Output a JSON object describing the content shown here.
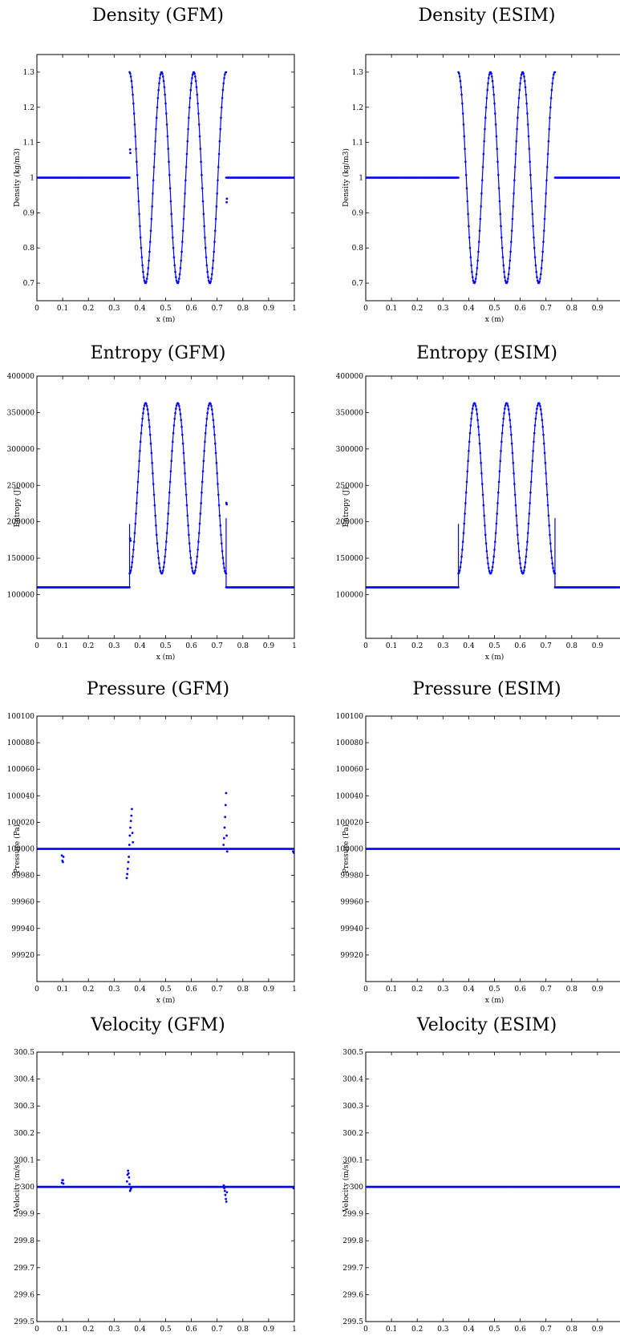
{
  "chart_data": [
    {
      "type": "line",
      "title": "Density (GFM)",
      "xlabel": "x (m)",
      "ylabel": "Density (kg/m3)",
      "xlim": [
        0,
        1
      ],
      "ylim": [
        0.65,
        1.35
      ],
      "x_ticks": [
        "0",
        "0.1",
        "0.2",
        "0.3",
        "0.4",
        "0.5",
        "0.6",
        "0.7",
        "0.8",
        "0.9",
        "1"
      ],
      "y_ticks": [
        {
          "v": 0.7,
          "label": "0.7"
        },
        {
          "v": 0.8,
          "label": "0.8"
        },
        {
          "v": 0.9,
          "label": "0.9"
        },
        {
          "v": 1.0,
          "label": "1"
        },
        {
          "v": 1.1,
          "label": "1.1"
        },
        {
          "v": 1.2,
          "label": "1.2"
        },
        {
          "v": 1.3,
          "label": "1.3"
        }
      ],
      "series": [
        {
          "color": "#0000ff",
          "segments": [
            {
              "kind": "const",
              "x0": 0,
              "x1": 0.36,
              "y": 1.0
            },
            {
              "kind": "sine",
              "x0": 0.36,
              "x1": 0.735,
              "base": 1.0,
              "amp": 0.3,
              "period": 0.125,
              "phase": 0.328
            },
            {
              "kind": "const",
              "x0": 0.735,
              "x1": 1,
              "y": 1.0
            }
          ],
          "spikes": [
            {
              "x": 0.362,
              "y": 1.08
            },
            {
              "x": 0.363,
              "y": 1.07
            },
            {
              "x": 0.737,
              "y": 0.93
            },
            {
              "x": 0.738,
              "y": 0.94
            }
          ]
        }
      ]
    },
    {
      "type": "line",
      "title": "Density (ESIM)",
      "xlabel": "x (m)",
      "ylabel": "Density (kg/m3)",
      "xlim": [
        0,
        1
      ],
      "ylim": [
        0.65,
        1.35
      ],
      "x_ticks": [
        "0",
        "0.1",
        "0.2",
        "0.3",
        "0.4",
        "0.5",
        "0.6",
        "0.7",
        "0.8",
        "0.9"
      ],
      "y_ticks": [
        {
          "v": 0.7,
          "label": "0.7"
        },
        {
          "v": 0.8,
          "label": "0.8"
        },
        {
          "v": 0.9,
          "label": "0.9"
        },
        {
          "v": 1.0,
          "label": "1"
        },
        {
          "v": 1.1,
          "label": "1.1"
        },
        {
          "v": 1.2,
          "label": "1.2"
        },
        {
          "v": 1.3,
          "label": "1.3"
        }
      ],
      "series": [
        {
          "color": "#0000ff",
          "segments": [
            {
              "kind": "const",
              "x0": 0,
              "x1": 0.36,
              "y": 1.0
            },
            {
              "kind": "sine",
              "x0": 0.36,
              "x1": 0.735,
              "base": 1.0,
              "amp": 0.3,
              "period": 0.125,
              "phase": 0.328
            },
            {
              "kind": "const",
              "x0": 0.735,
              "x1": 1,
              "y": 1.0
            }
          ],
          "spikes": []
        }
      ]
    },
    {
      "type": "line",
      "title": "Entropy (GFM)",
      "xlabel": "x (m)",
      "ylabel": "Entropy (J)",
      "xlim": [
        0,
        1
      ],
      "ylim": [
        40000,
        400000
      ],
      "x_ticks": [
        "0",
        "0.1",
        "0.2",
        "0.3",
        "0.4",
        "0.5",
        "0.6",
        "0.7",
        "0.8",
        "0.9",
        "1"
      ],
      "y_ticks": [
        {
          "v": 100000,
          "label": "100000"
        },
        {
          "v": 150000,
          "label": "150000"
        },
        {
          "v": 200000,
          "label": "200000"
        },
        {
          "v": 250000,
          "label": "250000"
        },
        {
          "v": 300000,
          "label": "300000"
        },
        {
          "v": 350000,
          "label": "350000"
        },
        {
          "v": 400000,
          "label": "400000"
        }
      ],
      "series": [
        {
          "color": "#0000ff",
          "segments": [
            {
              "kind": "const",
              "x0": 0,
              "x1": 0.36,
              "y": 110000
            },
            {
              "kind": "jump",
              "x": 0.36,
              "y0": 110000,
              "y1": 197000
            },
            {
              "kind": "sine",
              "x0": 0.36,
              "x1": 0.735,
              "base": 246000,
              "amp": 117000,
              "period": 0.125,
              "phase": 0.391
            },
            {
              "kind": "jump",
              "x": 0.735,
              "y0": 205000,
              "y1": 110000
            },
            {
              "kind": "const",
              "x0": 0.735,
              "x1": 1,
              "y": 110000
            }
          ],
          "spikes": [
            {
              "x": 0.362,
              "y": 177000
            },
            {
              "x": 0.364,
              "y": 174000
            },
            {
              "x": 0.736,
              "y": 226000
            },
            {
              "x": 0.737,
              "y": 224000
            }
          ]
        }
      ]
    },
    {
      "type": "line",
      "title": "Entropy (ESIM)",
      "xlabel": "x (m)",
      "ylabel": "Entropy (J)",
      "xlim": [
        0,
        1
      ],
      "ylim": [
        40000,
        400000
      ],
      "x_ticks": [
        "0",
        "0.1",
        "0.2",
        "0.3",
        "0.4",
        "0.5",
        "0.6",
        "0.7",
        "0.8",
        "0.9"
      ],
      "y_ticks": [
        {
          "v": 100000,
          "label": "100000"
        },
        {
          "v": 150000,
          "label": "150000"
        },
        {
          "v": 200000,
          "label": "200000"
        },
        {
          "v": 250000,
          "label": "250000"
        },
        {
          "v": 300000,
          "label": "300000"
        },
        {
          "v": 350000,
          "label": "350000"
        },
        {
          "v": 400000,
          "label": "400000"
        }
      ],
      "series": [
        {
          "color": "#0000ff",
          "segments": [
            {
              "kind": "const",
              "x0": 0,
              "x1": 0.36,
              "y": 110000
            },
            {
              "kind": "jump",
              "x": 0.36,
              "y0": 110000,
              "y1": 197000
            },
            {
              "kind": "sine",
              "x0": 0.36,
              "x1": 0.735,
              "base": 246000,
              "amp": 117000,
              "period": 0.125,
              "phase": 0.391
            },
            {
              "kind": "jump",
              "x": 0.735,
              "y0": 205000,
              "y1": 110000
            },
            {
              "kind": "const",
              "x0": 0.735,
              "x1": 1,
              "y": 110000
            }
          ],
          "spikes": []
        }
      ]
    },
    {
      "type": "line",
      "title": "Pressure (GFM)",
      "xlabel": "x (m)",
      "ylabel": "Pressure (Pa)",
      "xlim": [
        0,
        1
      ],
      "ylim": [
        99900,
        100100
      ],
      "x_ticks": [
        "0",
        "0.1",
        "0.2",
        "0.3",
        "0.4",
        "0.5",
        "0.6",
        "0.7",
        "0.8",
        "0.9",
        "1"
      ],
      "y_ticks": [
        {
          "v": 99920,
          "label": "99920"
        },
        {
          "v": 99940,
          "label": "99940"
        },
        {
          "v": 99960,
          "label": "99960"
        },
        {
          "v": 99980,
          "label": "99980"
        },
        {
          "v": 100000,
          "label": "100000"
        },
        {
          "v": 100020,
          "label": "100020"
        },
        {
          "v": 100040,
          "label": "100040"
        },
        {
          "v": 100060,
          "label": "100060"
        },
        {
          "v": 100080,
          "label": "100080"
        },
        {
          "v": 100100,
          "label": "100100"
        }
      ],
      "series": [
        {
          "color": "#0000ff",
          "segments": [
            {
              "kind": "const",
              "x0": 0,
              "x1": 1,
              "y": 100000
            }
          ],
          "spikes": [
            {
              "x": 0.097,
              "y": 99995
            },
            {
              "x": 0.099,
              "y": 99991
            },
            {
              "x": 0.101,
              "y": 99990
            },
            {
              "x": 0.103,
              "y": 99994
            },
            {
              "x": 0.349,
              "y": 99978
            },
            {
              "x": 0.351,
              "y": 99981
            },
            {
              "x": 0.353,
              "y": 99985
            },
            {
              "x": 0.355,
              "y": 99990
            },
            {
              "x": 0.357,
              "y": 99994
            },
            {
              "x": 0.359,
              "y": 100003
            },
            {
              "x": 0.361,
              "y": 100010
            },
            {
              "x": 0.363,
              "y": 100016
            },
            {
              "x": 0.365,
              "y": 100021
            },
            {
              "x": 0.367,
              "y": 100025
            },
            {
              "x": 0.369,
              "y": 100030
            },
            {
              "x": 0.371,
              "y": 100012
            },
            {
              "x": 0.373,
              "y": 100005
            },
            {
              "x": 0.725,
              "y": 100003
            },
            {
              "x": 0.727,
              "y": 100008
            },
            {
              "x": 0.729,
              "y": 100016
            },
            {
              "x": 0.731,
              "y": 100024
            },
            {
              "x": 0.733,
              "y": 100033
            },
            {
              "x": 0.735,
              "y": 100042
            },
            {
              "x": 0.737,
              "y": 100010
            },
            {
              "x": 0.739,
              "y": 99998
            },
            {
              "x": 0.995,
              "y": 99998
            },
            {
              "x": 0.998,
              "y": 99997
            }
          ]
        }
      ]
    },
    {
      "type": "line",
      "title": "Pressure (ESIM)",
      "xlabel": "x (m)",
      "ylabel": "Pressure (Pa)",
      "xlim": [
        0,
        1
      ],
      "ylim": [
        99900,
        100100
      ],
      "x_ticks": [
        "0",
        "0.1",
        "0.2",
        "0.3",
        "0.4",
        "0.5",
        "0.6",
        "0.7",
        "0.8",
        "0.9"
      ],
      "y_ticks": [
        {
          "v": 99920,
          "label": "99920"
        },
        {
          "v": 99940,
          "label": "99940"
        },
        {
          "v": 99960,
          "label": "99960"
        },
        {
          "v": 99980,
          "label": "99980"
        },
        {
          "v": 100000,
          "label": "100000"
        },
        {
          "v": 100020,
          "label": "100020"
        },
        {
          "v": 100040,
          "label": "100040"
        },
        {
          "v": 100060,
          "label": "100060"
        },
        {
          "v": 100080,
          "label": "100080"
        },
        {
          "v": 100100,
          "label": "100100"
        }
      ],
      "series": [
        {
          "color": "#0000ff",
          "segments": [
            {
              "kind": "const",
              "x0": 0,
              "x1": 1,
              "y": 100000
            }
          ],
          "spikes": []
        }
      ]
    },
    {
      "type": "line",
      "title": "Velocity (GFM)",
      "xlabel": "x (m)",
      "ylabel": "Velocity (m/s)",
      "xlim": [
        0,
        1
      ],
      "ylim": [
        299.5,
        300.5
      ],
      "x_ticks": [
        "0",
        "0.1",
        "0.2",
        "0.3",
        "0.4",
        "0.5",
        "0.6",
        "0.7",
        "0.8",
        "0.9",
        "1"
      ],
      "y_ticks": [
        {
          "v": 299.5,
          "label": "299.5"
        },
        {
          "v": 299.6,
          "label": "299.6"
        },
        {
          "v": 299.7,
          "label": "299.7"
        },
        {
          "v": 299.8,
          "label": "299.8"
        },
        {
          "v": 299.9,
          "label": "299.9"
        },
        {
          "v": 300.0,
          "label": "300"
        },
        {
          "v": 300.1,
          "label": "300.1"
        },
        {
          "v": 300.2,
          "label": "300.2"
        },
        {
          "v": 300.3,
          "label": "300.3"
        },
        {
          "v": 300.4,
          "label": "300.4"
        },
        {
          "v": 300.5,
          "label": "300.5"
        }
      ],
      "series": [
        {
          "color": "#0000ff",
          "segments": [
            {
              "kind": "const",
              "x0": 0,
              "x1": 1,
              "y": 300.0
            }
          ],
          "spikes": [
            {
              "x": 0.097,
              "y": 300.015
            },
            {
              "x": 0.099,
              "y": 300.025
            },
            {
              "x": 0.101,
              "y": 300.025
            },
            {
              "x": 0.103,
              "y": 300.012
            },
            {
              "x": 0.35,
              "y": 300.02
            },
            {
              "x": 0.352,
              "y": 300.045
            },
            {
              "x": 0.354,
              "y": 300.06
            },
            {
              "x": 0.356,
              "y": 300.05
            },
            {
              "x": 0.358,
              "y": 300.035
            },
            {
              "x": 0.36,
              "y": 300.01
            },
            {
              "x": 0.362,
              "y": 299.985
            },
            {
              "x": 0.364,
              "y": 299.99
            },
            {
              "x": 0.366,
              "y": 299.995
            },
            {
              "x": 0.726,
              "y": 300.005
            },
            {
              "x": 0.728,
              "y": 299.995
            },
            {
              "x": 0.73,
              "y": 299.985
            },
            {
              "x": 0.732,
              "y": 299.97
            },
            {
              "x": 0.734,
              "y": 299.955
            },
            {
              "x": 0.736,
              "y": 299.945
            },
            {
              "x": 0.738,
              "y": 299.98
            },
            {
              "x": 0.997,
              "y": 299.995
            }
          ]
        }
      ]
    },
    {
      "type": "line",
      "title": "Velocity (ESIM)",
      "xlabel": "x (m)",
      "ylabel": "Velocity (m/s)",
      "xlim": [
        0,
        1
      ],
      "ylim": [
        299.5,
        300.5
      ],
      "x_ticks": [
        "0",
        "0.1",
        "0.2",
        "0.3",
        "0.4",
        "0.5",
        "0.6",
        "0.7",
        "0.8",
        "0.9"
      ],
      "y_ticks": [
        {
          "v": 299.5,
          "label": "299.5"
        },
        {
          "v": 299.6,
          "label": "299.6"
        },
        {
          "v": 299.7,
          "label": "299.7"
        },
        {
          "v": 299.8,
          "label": "299.8"
        },
        {
          "v": 299.9,
          "label": "299.9"
        },
        {
          "v": 300.0,
          "label": "300"
        },
        {
          "v": 300.1,
          "label": "300.1"
        },
        {
          "v": 300.2,
          "label": "300.2"
        },
        {
          "v": 300.3,
          "label": "300.3"
        },
        {
          "v": 300.4,
          "label": "300.4"
        },
        {
          "v": 300.5,
          "label": "300.5"
        }
      ],
      "series": [
        {
          "color": "#0000ff",
          "segments": [
            {
              "kind": "const",
              "x0": 0,
              "x1": 1,
              "y": 300.0
            }
          ],
          "spikes": []
        }
      ]
    }
  ]
}
